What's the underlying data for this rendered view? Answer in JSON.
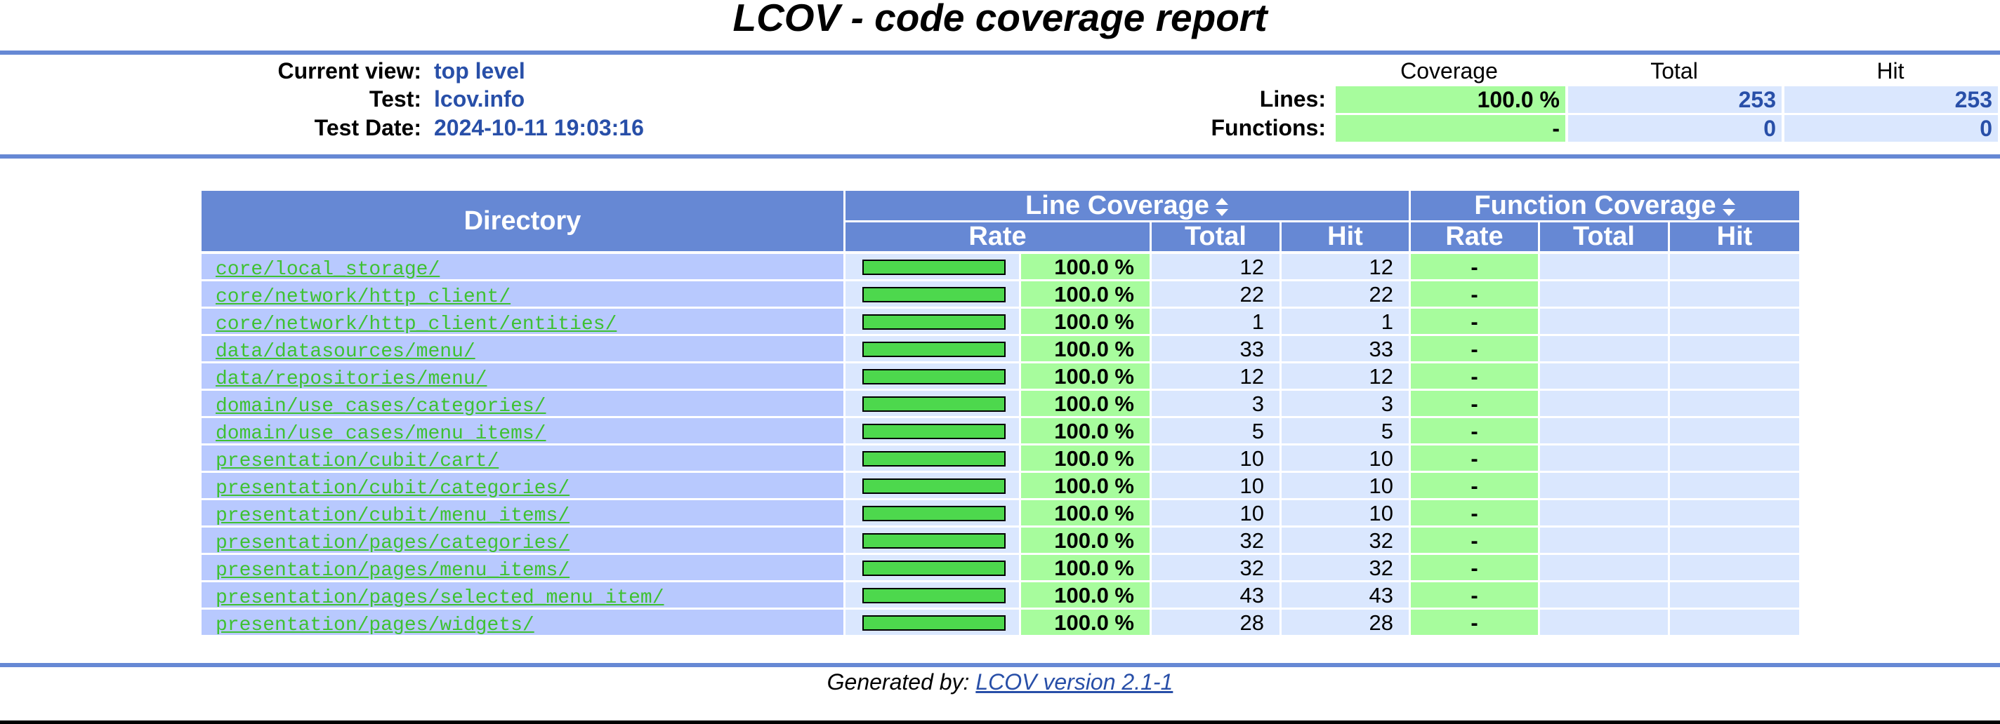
{
  "title": "LCOV - code coverage report",
  "info": {
    "current_view_label": "Current view:",
    "current_view_value": "top level",
    "test_label": "Test:",
    "test_value": "lcov.info",
    "test_date_label": "Test Date:",
    "test_date_value": "2024-10-11 19:03:16"
  },
  "summary": {
    "col_coverage": "Coverage",
    "col_total": "Total",
    "col_hit": "Hit",
    "lines_label": "Lines:",
    "lines_coverage": "100.0 %",
    "lines_total": "253",
    "lines_hit": "253",
    "functions_label": "Functions:",
    "functions_coverage": "-",
    "functions_total": "0",
    "functions_hit": "0"
  },
  "table": {
    "head_directory": "Directory",
    "head_line_coverage": "Line Coverage",
    "head_function_coverage": "Function Coverage",
    "head_rate": "Rate",
    "head_total": "Total",
    "head_hit": "Hit",
    "rows": [
      {
        "dir": "core/local_storage/",
        "fill": 1.0,
        "rate": "100.0 %",
        "total": "12",
        "hit": "12",
        "fn_rate": "-"
      },
      {
        "dir": "core/network/http_client/",
        "fill": 1.0,
        "rate": "100.0 %",
        "total": "22",
        "hit": "22",
        "fn_rate": "-"
      },
      {
        "dir": "core/network/http_client/entities/",
        "fill": 1.0,
        "rate": "100.0 %",
        "total": "1",
        "hit": "1",
        "fn_rate": "-"
      },
      {
        "dir": "data/datasources/menu/",
        "fill": 1.0,
        "rate": "100.0 %",
        "total": "33",
        "hit": "33",
        "fn_rate": "-"
      },
      {
        "dir": "data/repositories/menu/",
        "fill": 1.0,
        "rate": "100.0 %",
        "total": "12",
        "hit": "12",
        "fn_rate": "-"
      },
      {
        "dir": "domain/use_cases/categories/",
        "fill": 1.0,
        "rate": "100.0 %",
        "total": "3",
        "hit": "3",
        "fn_rate": "-"
      },
      {
        "dir": "domain/use_cases/menu_items/",
        "fill": 1.0,
        "rate": "100.0 %",
        "total": "5",
        "hit": "5",
        "fn_rate": "-"
      },
      {
        "dir": "presentation/cubit/cart/",
        "fill": 1.0,
        "rate": "100.0 %",
        "total": "10",
        "hit": "10",
        "fn_rate": "-"
      },
      {
        "dir": "presentation/cubit/categories/",
        "fill": 1.0,
        "rate": "100.0 %",
        "total": "10",
        "hit": "10",
        "fn_rate": "-"
      },
      {
        "dir": "presentation/cubit/menu_items/",
        "fill": 1.0,
        "rate": "100.0 %",
        "total": "10",
        "hit": "10",
        "fn_rate": "-"
      },
      {
        "dir": "presentation/pages/categories/",
        "fill": 1.0,
        "rate": "100.0 %",
        "total": "32",
        "hit": "32",
        "fn_rate": "-"
      },
      {
        "dir": "presentation/pages/menu_items/",
        "fill": 1.0,
        "rate": "100.0 %",
        "total": "32",
        "hit": "32",
        "fn_rate": "-"
      },
      {
        "dir": "presentation/pages/selected_menu_item/",
        "fill": 1.0,
        "rate": "100.0 %",
        "total": "43",
        "hit": "43",
        "fn_rate": "-"
      },
      {
        "dir": "presentation/pages/widgets/",
        "fill": 1.0,
        "rate": "100.0 %",
        "total": "28",
        "hit": "28",
        "fn_rate": "-"
      }
    ]
  },
  "footer": {
    "generated_by": "Generated by: ",
    "tool_link": "LCOV version 2.1-1"
  },
  "colors": {
    "header_blue": "#6688d4",
    "cov_green": "#a7fc9d",
    "light_blue": "#dae7fe",
    "dir_blue": "#b8c9fe",
    "link_green": "#3ec132",
    "bar_green": "#4dd84d"
  }
}
